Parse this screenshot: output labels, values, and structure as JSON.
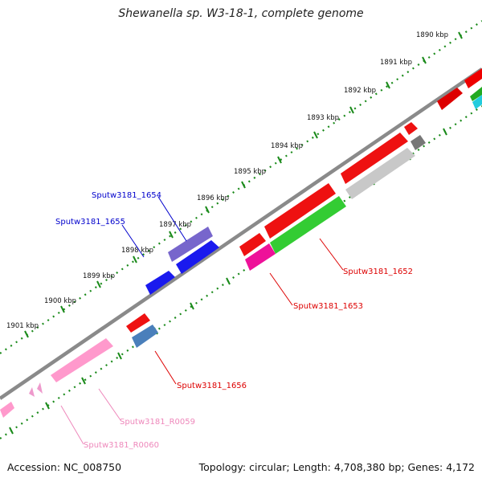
{
  "title": "Shewanella sp. W3-18-1, complete genome",
  "footer": {
    "accession": "Accession: NC_008750",
    "topology": "Topology: circular; Length: 4,708,380 bp; Genes: 4,172"
  },
  "colors": {
    "backbone": "#8a8a8a",
    "tick": "#1a8a1a",
    "forward_label": "#0000cc",
    "reverse_label": "#dd0000",
    "rna_label": "#ee88bb"
  },
  "kbp_ticks": [
    "1890 kbp",
    "1891 kbp",
    "1892 kbp",
    "1893 kbp",
    "1894 kbp",
    "1895 kbp",
    "1896 kbp",
    "1897 kbp",
    "1898 kbp",
    "1899 kbp",
    "1900 kbp",
    "1901 kbp"
  ],
  "gene_labels": [
    {
      "text": "Sputw3181_1654",
      "color": "#0000cc"
    },
    {
      "text": "Sputw3181_1655",
      "color": "#0000cc"
    },
    {
      "text": "Sputw3181_1652",
      "color": "#dd0000"
    },
    {
      "text": "Sputw3181_1653",
      "color": "#dd0000"
    },
    {
      "text": "Sputw3181_1656",
      "color": "#dd0000"
    },
    {
      "text": "Sputw3181_R0059",
      "color": "#ee88bb"
    },
    {
      "text": "Sputw3181_R0060",
      "color": "#ee88bb"
    }
  ]
}
